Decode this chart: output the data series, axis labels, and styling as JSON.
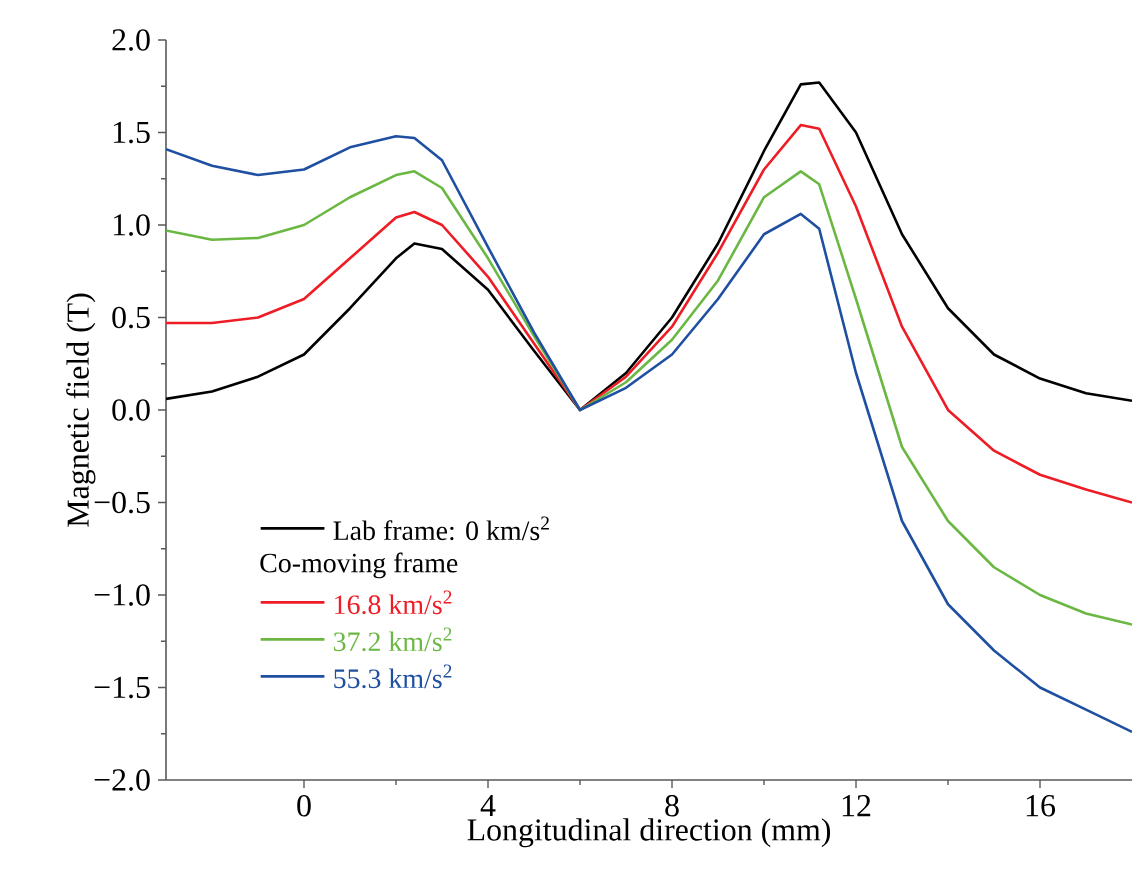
{
  "chart_data": {
    "type": "line",
    "xlabel": "Longitudinal direction (mm)",
    "ylabel": "Magnetic field (T)",
    "legend_title": "Co-moving frame",
    "xlim": [
      -3,
      18
    ],
    "xticks": [
      0,
      4,
      8,
      12,
      16
    ],
    "ylim": [
      -2,
      2
    ],
    "yticks": [
      {
        "value": -2,
        "label": "−2.0"
      },
      {
        "value": -1.5,
        "label": "−1.5"
      },
      {
        "value": -1,
        "label": "−1.0"
      },
      {
        "value": -0.5,
        "label": "−0.5"
      },
      {
        "value": 0,
        "label": "0.0"
      },
      {
        "value": 0.5,
        "label": "0.5"
      },
      {
        "value": 1,
        "label": "1.0"
      },
      {
        "value": 1.5,
        "label": "1.5"
      },
      {
        "value": 2,
        "label": "2.0"
      }
    ],
    "legend": "bottom left",
    "grid": false,
    "marker": "none",
    "line_style": "solid",
    "x": [
      -3,
      -2,
      -1,
      0,
      1,
      2,
      2.4,
      3,
      4,
      5,
      6,
      7,
      8,
      9,
      10,
      10.8,
      11.2,
      12,
      13,
      14,
      15,
      16,
      17,
      18
    ],
    "series": [
      {
        "name": "Lab frame: 0 km/s$^{2}$",
        "color": "#000000",
        "values": [
          0.06,
          0.1,
          0.18,
          0.3,
          0.55,
          0.82,
          0.9,
          0.87,
          0.65,
          0.32,
          0.0,
          0.2,
          0.5,
          0.9,
          1.4,
          1.76,
          1.77,
          1.5,
          0.95,
          0.55,
          0.3,
          0.17,
          0.09,
          0.05
        ]
      },
      {
        "name": "16.8 km/s$^{2}$",
        "color": "#ee1c25",
        "values": [
          0.47,
          0.47,
          0.5,
          0.6,
          0.82,
          1.04,
          1.07,
          1.0,
          0.72,
          0.36,
          0.0,
          0.18,
          0.45,
          0.85,
          1.3,
          1.54,
          1.52,
          1.1,
          0.45,
          0.0,
          -0.22,
          -0.35,
          -0.43,
          -0.5
        ]
      },
      {
        "name": "37.2 km/s$^{2}$",
        "color": "#6ab843",
        "values": [
          0.97,
          0.92,
          0.93,
          1.0,
          1.15,
          1.27,
          1.29,
          1.2,
          0.82,
          0.4,
          0.0,
          0.15,
          0.38,
          0.7,
          1.15,
          1.29,
          1.22,
          0.6,
          -0.2,
          -0.6,
          -0.85,
          -1.0,
          -1.1,
          -1.16
        ]
      },
      {
        "name": "55.3 km/s$^{2}$",
        "color": "#1f4fa0",
        "values": [
          1.41,
          1.32,
          1.27,
          1.3,
          1.42,
          1.48,
          1.47,
          1.35,
          0.88,
          0.42,
          0.0,
          0.12,
          0.3,
          0.6,
          0.95,
          1.06,
          0.98,
          0.2,
          -0.6,
          -1.05,
          -1.3,
          -1.5,
          -1.62,
          -1.74
        ]
      }
    ]
  }
}
